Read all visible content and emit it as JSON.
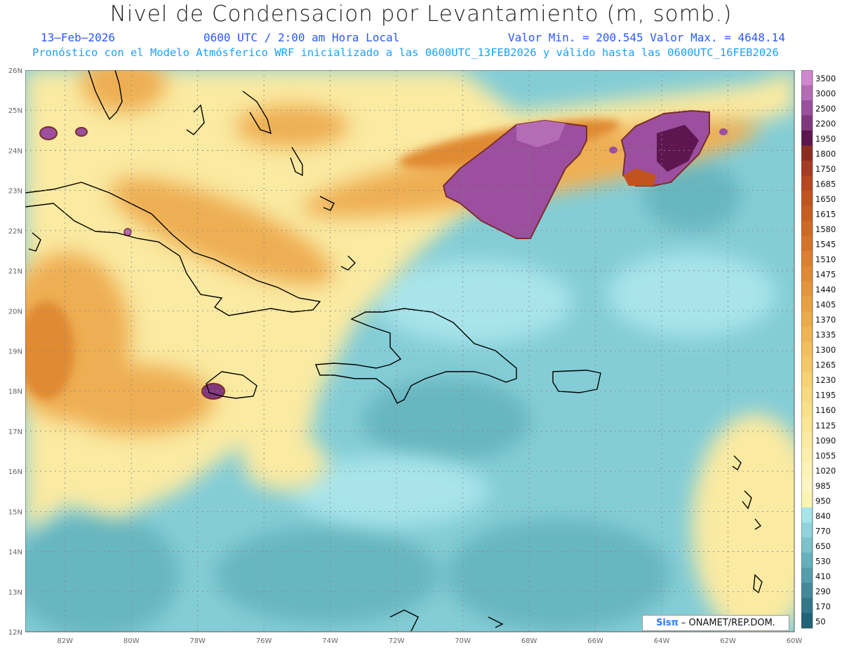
{
  "header": {
    "title": "Nivel de Condensacion por Levantamiento (m, somb.)",
    "date": "13–Feb–2026",
    "time": "0600 UTC / 2:00 am Hora Local",
    "minmax": "Valor Min. = 200.545   Valor Max. = 4648.14",
    "subtitle": "Pronóstico con el Modelo Atmósferico WRF inicializado a las 0600UTC_13FEB2026 y válido hasta las  0600UTC_16FEB2026"
  },
  "axes": {
    "lat_labels": [
      "26N",
      "25N",
      "24N",
      "23N",
      "22N",
      "21N",
      "20N",
      "19N",
      "18N",
      "17N",
      "16N",
      "15N",
      "14N",
      "13N",
      "12N"
    ],
    "lon_labels": [
      "82W",
      "80W",
      "78W",
      "76W",
      "74W",
      "72W",
      "70W",
      "68W",
      "66W",
      "64W",
      "62W",
      "60W"
    ],
    "lat_range": [
      12,
      26
    ],
    "lon_range": [
      -83.2,
      -60
    ]
  },
  "colorbar": {
    "labels": [
      "3500",
      "3000",
      "2500",
      "2200",
      "1950",
      "1800",
      "1750",
      "1685",
      "1650",
      "1615",
      "1580",
      "1545",
      "1510",
      "1475",
      "1440",
      "1405",
      "1370",
      "1335",
      "1300",
      "1265",
      "1230",
      "1195",
      "1160",
      "1125",
      "1090",
      "1055",
      "1020",
      "985",
      "950",
      "840",
      "770",
      "650",
      "530",
      "410",
      "290",
      "170",
      "50"
    ],
    "colors": [
      "#cf86cf",
      "#b46cb6",
      "#9b4f9e",
      "#82387f",
      "#5e1650",
      "#8a2d20",
      "#a63a22",
      "#b8461f",
      "#c2531f",
      "#c85e22",
      "#cf6a25",
      "#d57428",
      "#dc7f2e",
      "#e08a33",
      "#e59539",
      "#e9a040",
      "#edab48",
      "#f0b551",
      "#f3bf5c",
      "#f5c866",
      "#f7d172",
      "#f8d97d",
      "#f9e088",
      "#fae693",
      "#fbeb9e",
      "#fcefa9",
      "#fdf3b4",
      "#fdf6bf",
      "#fbf3b0",
      "#a6e6ea",
      "#8fd4dc",
      "#7ac2cc",
      "#66b0bd",
      "#549dac",
      "#428a9b",
      "#32778a",
      "#1f6378"
    ]
  },
  "credit": {
    "brand": "Sisπ",
    "text": "– ONAMET/REP.DOM."
  }
}
